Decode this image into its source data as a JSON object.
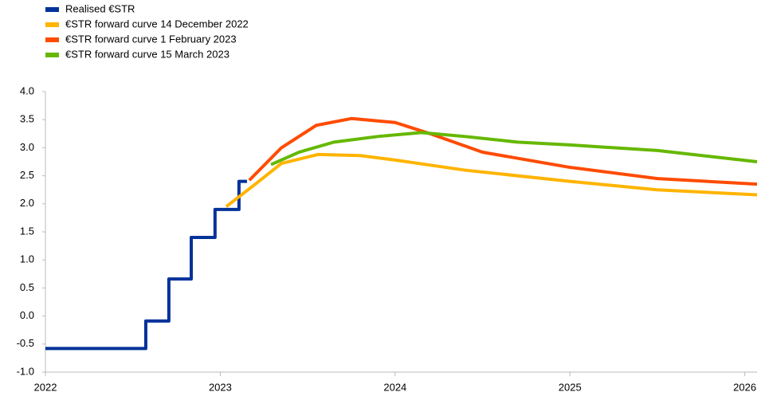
{
  "chart_data": {
    "type": "line",
    "xlim": [
      2022,
      2026.07
    ],
    "xticks": [
      2022,
      2023,
      2024,
      2025,
      2026
    ],
    "ylim": [
      -1,
      4
    ],
    "yticks": [
      {
        "value": -1,
        "label": "-1.0"
      },
      -0.5,
      {
        "value": 0,
        "label": "0.0"
      },
      0.5,
      {
        "value": 1,
        "label": "1.0"
      },
      1.5,
      {
        "value": 2,
        "label": "2.0"
      },
      2.5,
      {
        "value": 3,
        "label": "3.0"
      },
      3.5,
      {
        "value": 4,
        "label": "4.0"
      }
    ],
    "grid": false,
    "legend": "top-left",
    "series": [
      {
        "name": "Realised €STR",
        "color": "#003299",
        "x": [
          2022,
          2022.574,
          2022.574,
          2022.706,
          2022.706,
          2022.834,
          2022.834,
          2022.97,
          2022.97,
          2023.107,
          2023.107,
          2023.153
        ],
        "values": [
          -0.58,
          -0.58,
          -0.09,
          -0.09,
          0.66,
          0.66,
          1.4,
          1.4,
          1.9,
          1.9,
          2.4,
          2.4
        ]
      },
      {
        "name": "€STR forward curve 14 December 2022",
        "color": "#ffb400",
        "x": [
          2023.034,
          2023.2,
          2023.35,
          2023.56,
          2023.8,
          2024.0,
          2024.4,
          2025.0,
          2025.5,
          2026.07
        ],
        "values": [
          1.95,
          2.35,
          2.72,
          2.88,
          2.86,
          2.78,
          2.6,
          2.4,
          2.25,
          2.16
        ]
      },
      {
        "name": "€STR forward curve 1 February 2023",
        "color": "#ff4b00",
        "x": [
          2023.166,
          2023.35,
          2023.55,
          2023.75,
          2024.0,
          2024.2,
          2024.5,
          2025.0,
          2025.5,
          2026.07
        ],
        "values": [
          2.42,
          3.0,
          3.4,
          3.52,
          3.45,
          3.25,
          2.92,
          2.65,
          2.45,
          2.35
        ]
      },
      {
        "name": "€STR forward curve 15 March 2023",
        "color": "#65b800",
        "x": [
          2023.29,
          2023.45,
          2023.65,
          2023.9,
          2024.15,
          2024.4,
          2024.7,
          2025.0,
          2025.5,
          2026.07
        ],
        "values": [
          2.7,
          2.92,
          3.1,
          3.2,
          3.27,
          3.2,
          3.1,
          3.05,
          2.95,
          2.75
        ]
      }
    ]
  }
}
